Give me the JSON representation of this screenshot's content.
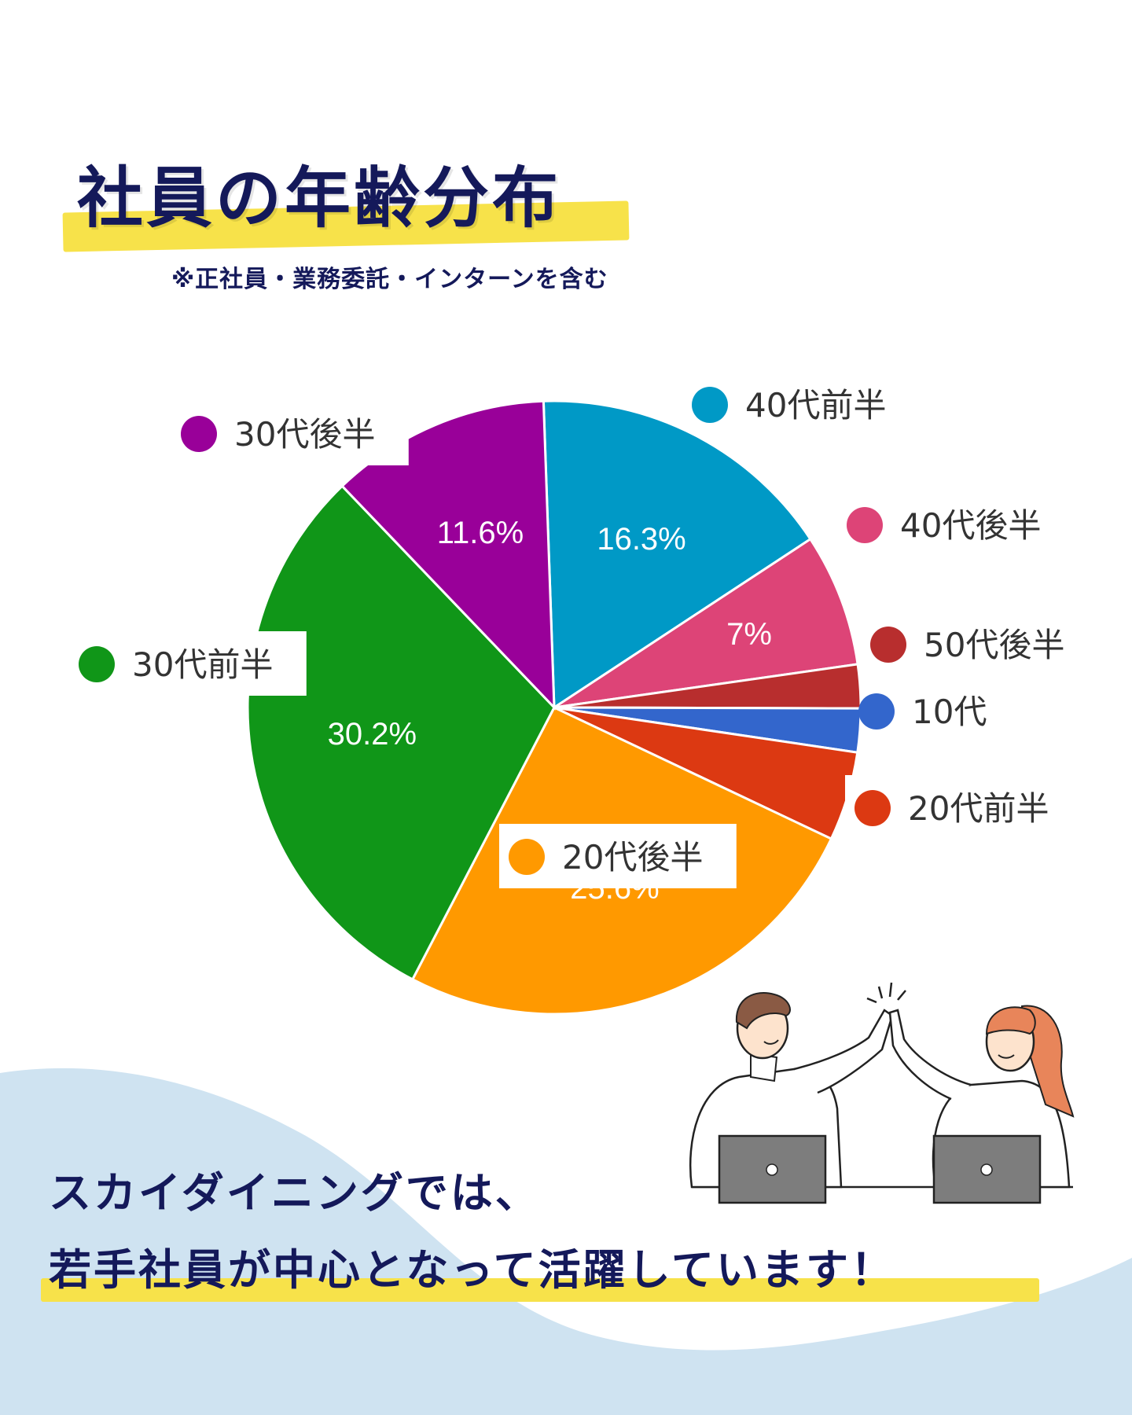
{
  "heading": {
    "title": "社員の年齢分布",
    "subtitle": "※正社員・業務委託・インターンを含む"
  },
  "chart_data": {
    "type": "pie",
    "slices": [
      {
        "label": "40代前半",
        "value": 16.3,
        "value_label": "16.3%",
        "color": "#0099c6"
      },
      {
        "label": "40代後半",
        "value": 7.0,
        "value_label": "7%",
        "color": "#dd4477"
      },
      {
        "label": "50代後半",
        "value": 2.3,
        "value_label": "",
        "color": "#b82e2e"
      },
      {
        "label": "10代",
        "value": 2.3,
        "value_label": "",
        "color": "#3366cc"
      },
      {
        "label": "20代前半",
        "value": 4.7,
        "value_label": "",
        "color": "#dc3912"
      },
      {
        "label": "20代後半",
        "value": 25.6,
        "value_label": "25.6%",
        "color": "#ff9900"
      },
      {
        "label": "30代前半",
        "value": 30.2,
        "value_label": "30.2%",
        "color": "#109618"
      },
      {
        "label": "30代後半",
        "value": 11.6,
        "value_label": "11.6%",
        "color": "#990099"
      }
    ]
  },
  "footer": {
    "line1": "スカイダイニングでは、",
    "line2": "若手社員が中心となって活躍しています！"
  },
  "colors": {
    "navy": "#14195a",
    "highlight": "#f7e24a",
    "wave": "#cfe3f1"
  },
  "illustration": "two-people-high-five-with-laptops"
}
